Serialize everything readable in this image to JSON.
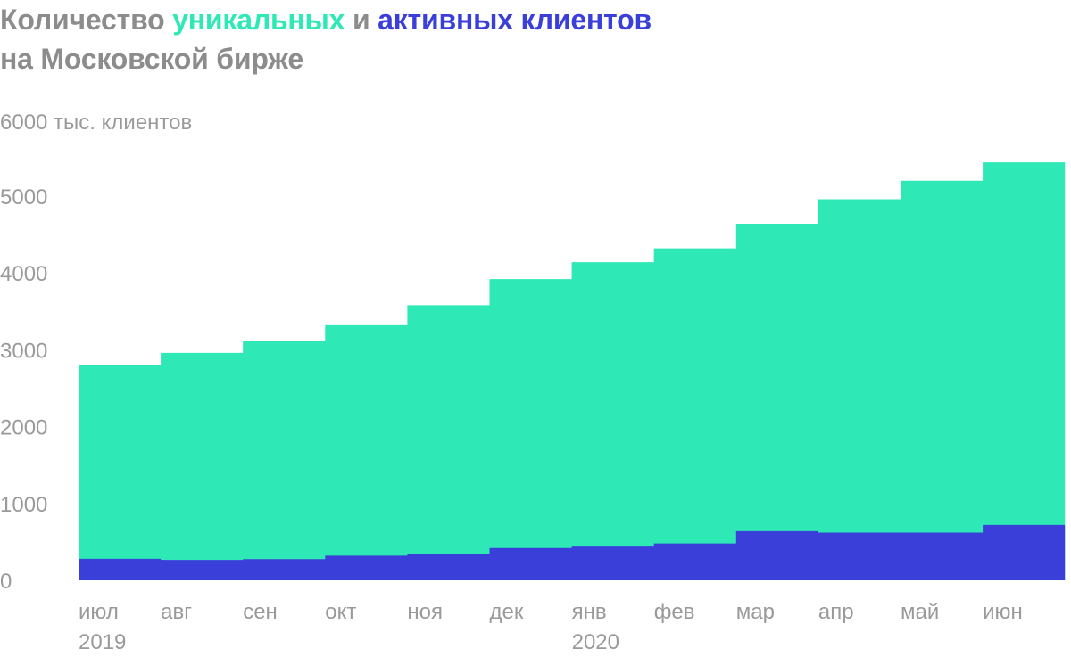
{
  "title": {
    "part1": "Количество ",
    "part2": "уникальных",
    "part3": " и ",
    "part4": "активных клиентов",
    "line2": "на Московской бирже"
  },
  "colors": {
    "unique": "#2ee8b6",
    "active": "#3b3fd9",
    "text": "#8c8c8c"
  },
  "chart_data": {
    "type": "area",
    "ylabel": "6000 тыс. клиентов",
    "ylim": [
      0,
      6000
    ],
    "yticks": [
      0,
      1000,
      2000,
      3000,
      4000,
      5000
    ],
    "categories": [
      "июл",
      "авг",
      "сен",
      "окт",
      "ноя",
      "дек",
      "янв",
      "фев",
      "мар",
      "апр",
      "май",
      "июн"
    ],
    "year_labels": [
      {
        "index": 0,
        "label": "2019"
      },
      {
        "index": 6,
        "label": "2020"
      }
    ],
    "series": [
      {
        "name": "уникальных",
        "values": [
          2800,
          2960,
          3120,
          3320,
          3580,
          3920,
          4140,
          4320,
          4640,
          4960,
          5200,
          5440
        ]
      },
      {
        "name": "активных клиентов",
        "values": [
          280,
          265,
          275,
          320,
          340,
          420,
          440,
          480,
          640,
          620,
          620,
          720
        ]
      }
    ]
  }
}
